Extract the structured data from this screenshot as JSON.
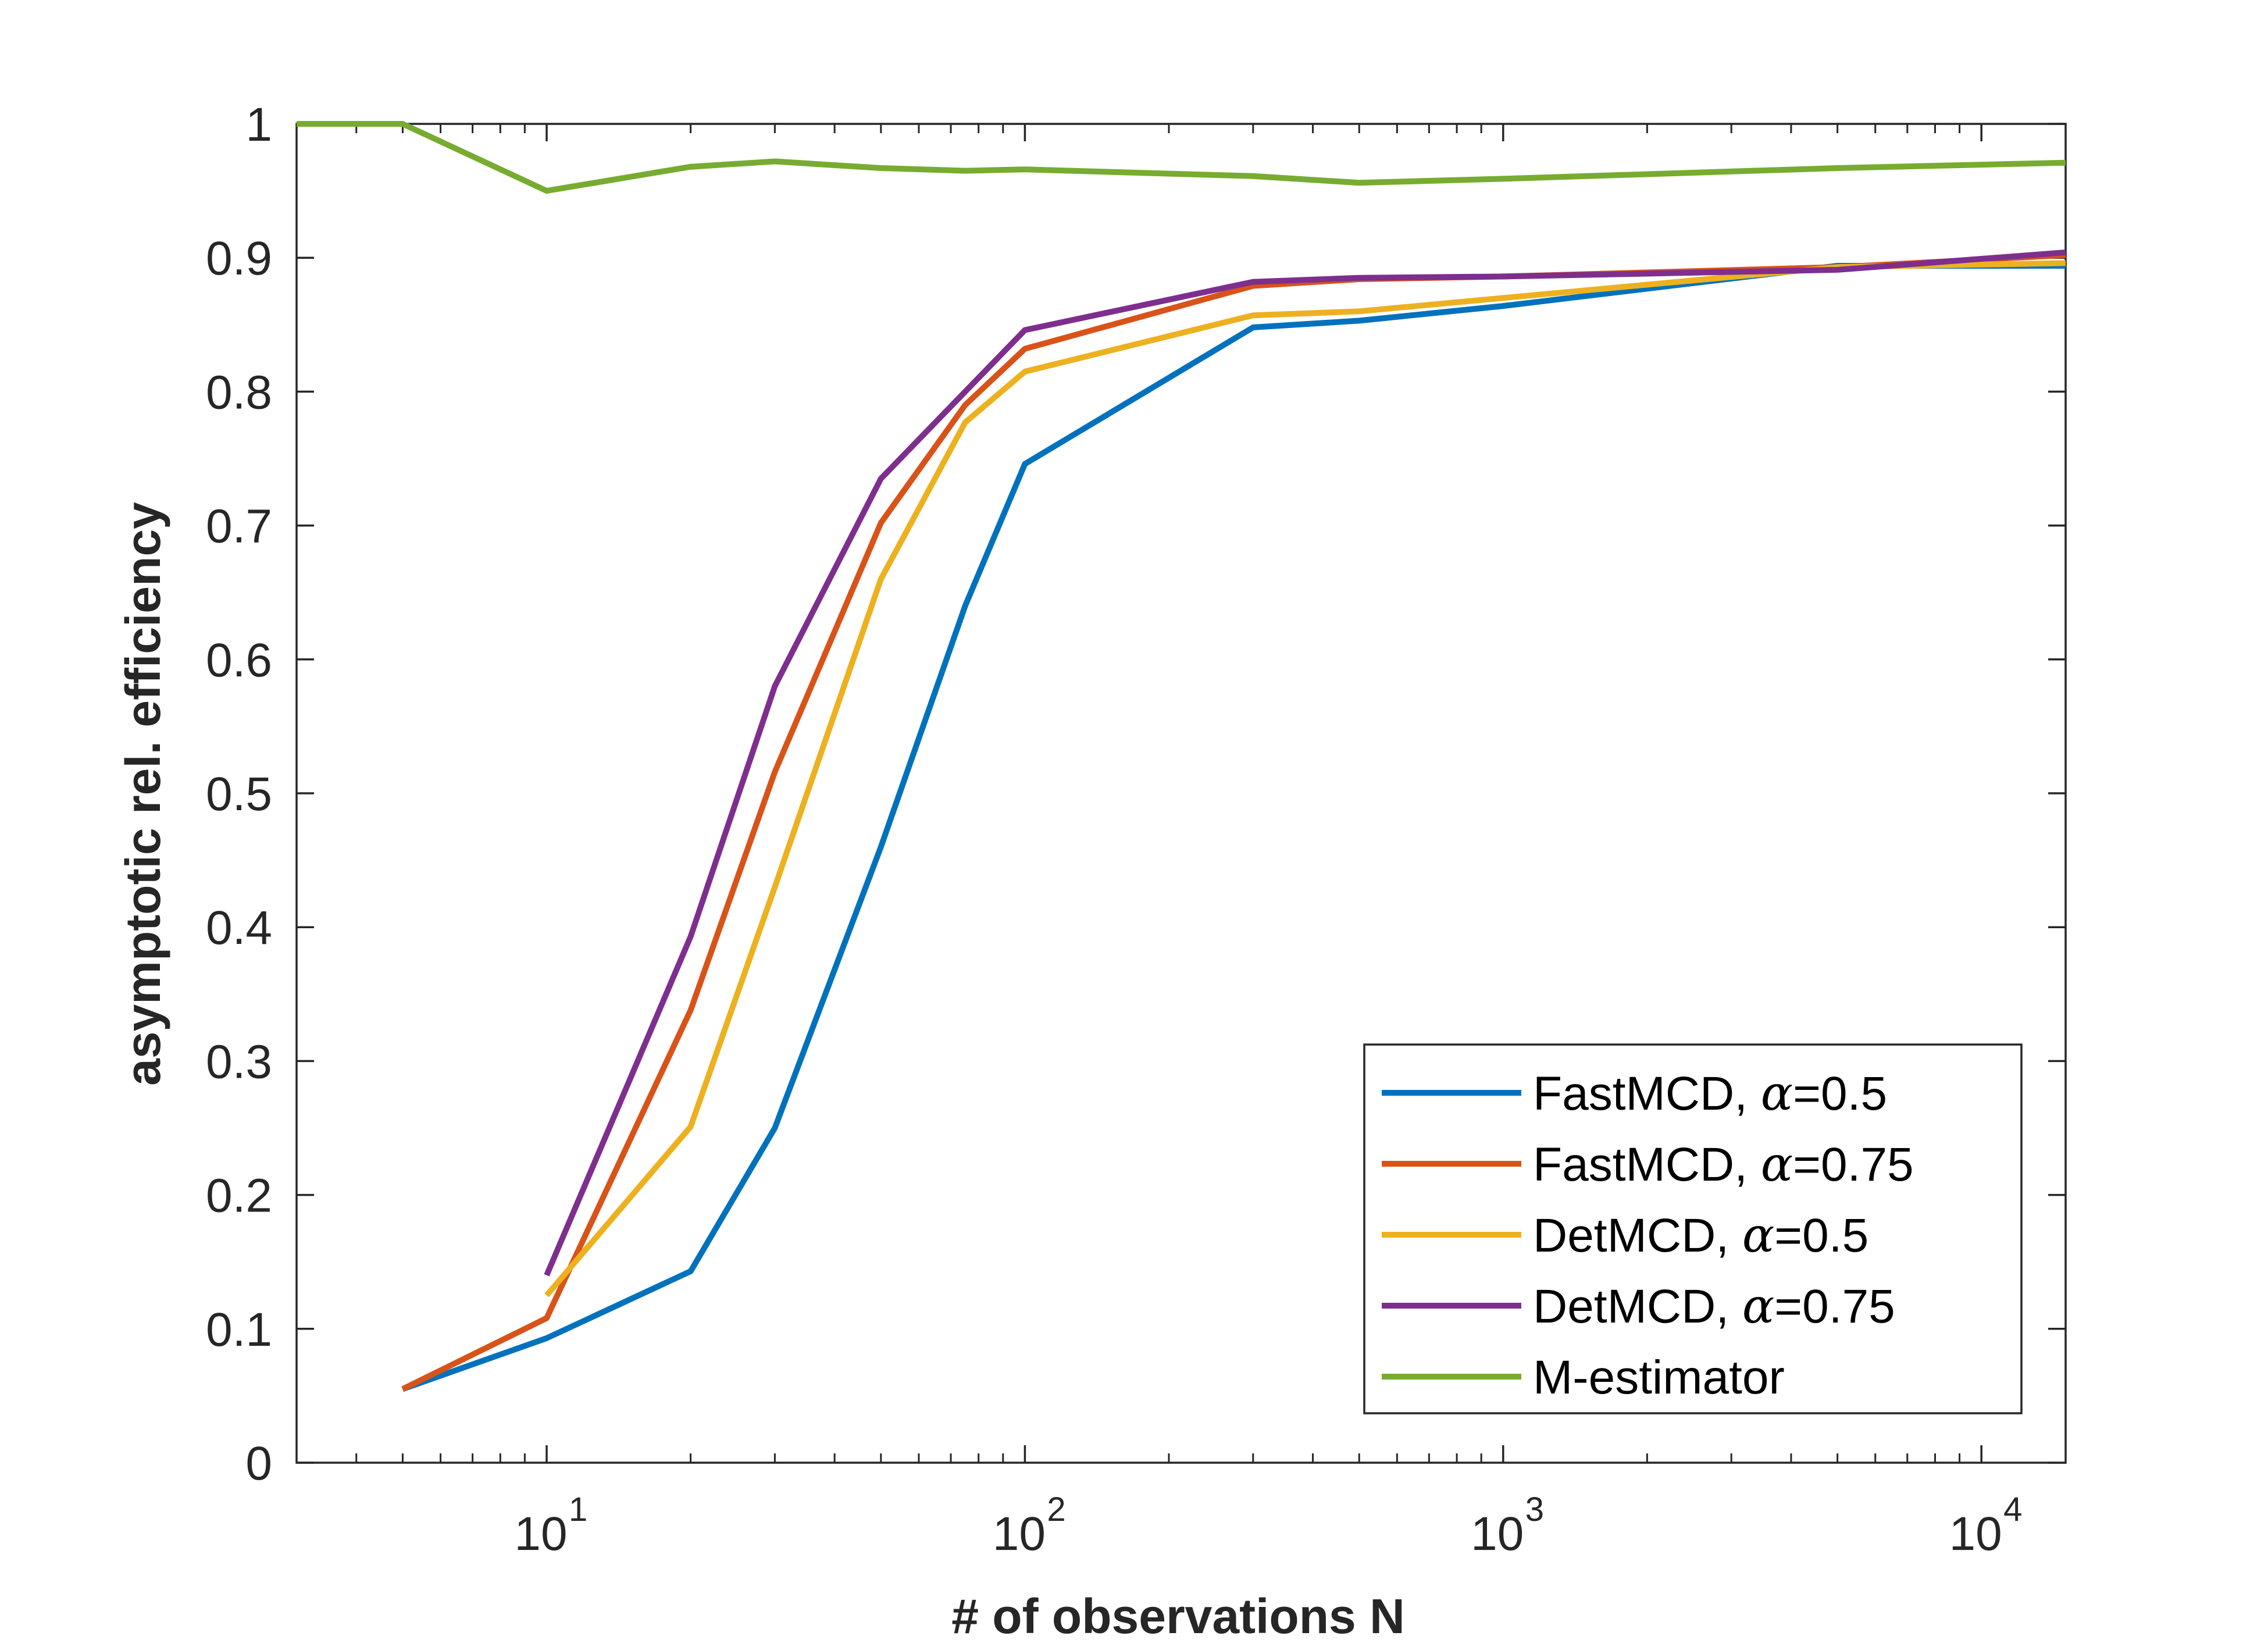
{
  "chart_data": {
    "type": "line",
    "title": "",
    "xlabel": "# of observations N",
    "ylabel": "asymptotic rel. efficiency",
    "xscale": "log",
    "xlim": [
      3,
      15000
    ],
    "ylim": [
      0,
      1
    ],
    "grid": false,
    "legend_position": "bottom-right",
    "y_ticks": [
      "0",
      "0.1",
      "0.2",
      "0.3",
      "0.4",
      "0.5",
      "0.6",
      "0.7",
      "0.8",
      "0.9",
      "1"
    ],
    "x_ticks": [
      {
        "base": "10",
        "exp": "1"
      },
      {
        "base": "10",
        "exp": "2"
      },
      {
        "base": "10",
        "exp": "3"
      },
      {
        "base": "10",
        "exp": "4"
      }
    ],
    "series": [
      {
        "name": "FastMCD, α=0.5",
        "label_prefix": "FastMCD, ",
        "label_alpha": "α",
        "label_suffix": "=0.5",
        "color": "#0072BD",
        "x": [
          5,
          10,
          20,
          30,
          50,
          75,
          100,
          300,
          500,
          1000,
          5000,
          15000
        ],
        "y": [
          0.055,
          0.093,
          0.143,
          0.25,
          0.46,
          0.64,
          0.746,
          0.848,
          0.853,
          0.864,
          0.894,
          0.894
        ]
      },
      {
        "name": "FastMCD, α=0.75",
        "label_prefix": "FastMCD, ",
        "label_alpha": "α",
        "label_suffix": "=0.75",
        "color": "#D95319",
        "x": [
          5,
          10,
          20,
          30,
          50,
          75,
          100,
          300,
          500,
          1000,
          5000,
          15000
        ],
        "y": [
          0.055,
          0.108,
          0.338,
          0.516,
          0.702,
          0.79,
          0.832,
          0.879,
          0.884,
          0.886,
          0.893,
          0.902
        ]
      },
      {
        "name": "DetMCD, α=0.5",
        "label_prefix": "DetMCD, ",
        "label_alpha": "α",
        "label_suffix": "=0.5",
        "color": "#EDB120",
        "x": [
          10,
          20,
          30,
          50,
          75,
          100,
          300,
          500,
          1000,
          5000,
          15000
        ],
        "y": [
          0.125,
          0.251,
          0.43,
          0.66,
          0.777,
          0.815,
          0.857,
          0.86,
          0.87,
          0.893,
          0.896
        ]
      },
      {
        "name": "DetMCD, α=0.75",
        "label_prefix": "DetMCD, ",
        "label_alpha": "α",
        "label_suffix": "=0.75",
        "color": "#7E2F8E",
        "x": [
          10,
          20,
          30,
          50,
          75,
          100,
          300,
          500,
          1000,
          5000,
          15000
        ],
        "y": [
          0.14,
          0.393,
          0.58,
          0.735,
          0.8,
          0.846,
          0.882,
          0.885,
          0.886,
          0.891,
          0.904
        ]
      },
      {
        "name": "M-estimator",
        "label_prefix": "M-estimator",
        "label_alpha": "",
        "label_suffix": "",
        "color": "#77AC30",
        "x": [
          3,
          5,
          10,
          20,
          30,
          50,
          75,
          100,
          300,
          500,
          1000,
          5000,
          15000
        ],
        "y": [
          1.0,
          1.0,
          0.95,
          0.968,
          0.972,
          0.967,
          0.965,
          0.966,
          0.961,
          0.956,
          0.959,
          0.967,
          0.971
        ]
      }
    ]
  }
}
